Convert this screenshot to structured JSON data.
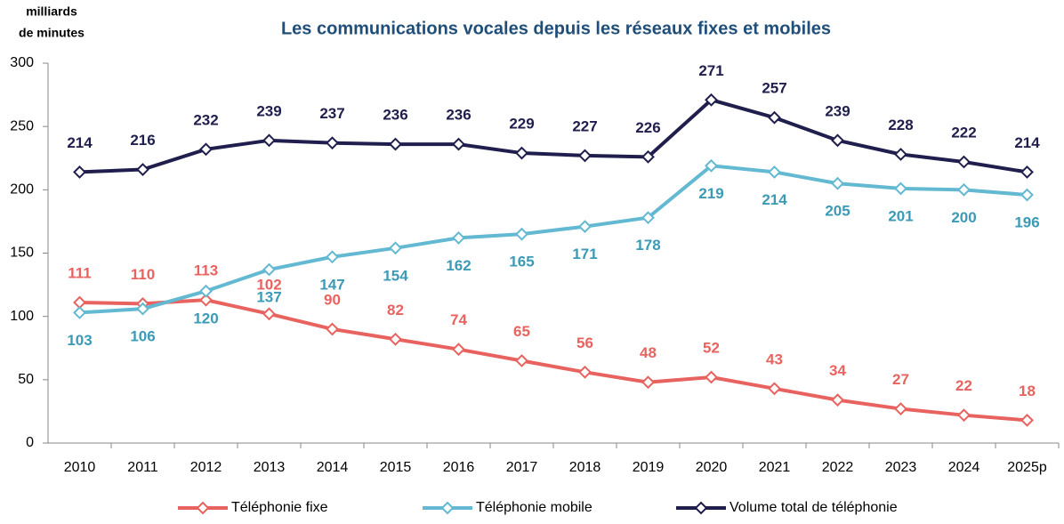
{
  "chart_data": {
    "type": "line",
    "title": "Les communications vocales depuis les réseaux fixes et mobiles",
    "y_label": [
      "milliards",
      "de minutes"
    ],
    "categories": [
      "2010",
      "2011",
      "2012",
      "2013",
      "2014",
      "2015",
      "2016",
      "2017",
      "2018",
      "2019",
      "2020",
      "2021",
      "2022",
      "2023",
      "2024",
      "2025p"
    ],
    "series": [
      {
        "name": "Téléphonie fixe",
        "color": "#e8635f",
        "label_color": "#e8635f",
        "label_position": "above",
        "values": [
          111,
          110,
          113,
          102,
          90,
          82,
          74,
          65,
          56,
          48,
          52,
          43,
          34,
          27,
          22,
          18
        ]
      },
      {
        "name": "Téléphonie mobile",
        "color": "#63b9d1",
        "label_color": "#3b9ab6",
        "label_position": "below",
        "values": [
          103,
          106,
          120,
          137,
          147,
          154,
          162,
          165,
          171,
          178,
          219,
          214,
          205,
          201,
          200,
          196
        ]
      },
      {
        "name": "Volume total de téléphonie",
        "color": "#1f1e4d",
        "label_color": "#1f1e4d",
        "label_position": "above",
        "values": [
          214,
          216,
          232,
          239,
          237,
          236,
          236,
          229,
          227,
          226,
          271,
          257,
          239,
          228,
          222,
          214
        ]
      }
    ],
    "ylim": [
      0,
      300
    ],
    "yticks": [
      0,
      50,
      100,
      150,
      200,
      250,
      300
    ],
    "grid": false,
    "legend": "bottom"
  }
}
